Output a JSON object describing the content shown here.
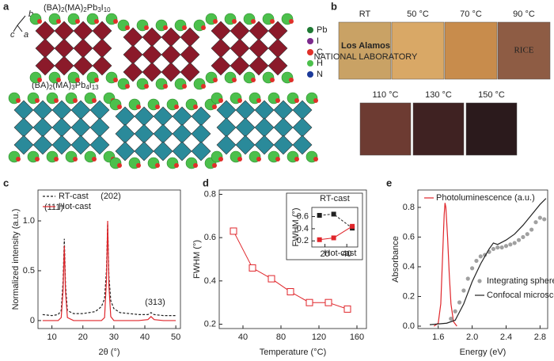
{
  "panel_a": {
    "label": "a",
    "axes": [
      "b",
      "c",
      "a"
    ],
    "formula_top": [
      "(BA)",
      "2",
      "(MA)",
      "2",
      "Pb",
      "3",
      "I",
      "10"
    ],
    "formula_bottom": [
      "(BA)",
      "2",
      "(MA)",
      "3",
      "Pb",
      "4",
      "I",
      "13"
    ],
    "legend": [
      {
        "name": "Pb",
        "color": "#1f7a34"
      },
      {
        "name": "I",
        "color": "#7b2a8c"
      },
      {
        "name": "C",
        "color": "#e0302a"
      },
      {
        "name": "H",
        "color": "#4cc04c"
      },
      {
        "name": "N",
        "color": "#1c3a9a"
      }
    ]
  },
  "panel_b": {
    "label": "b",
    "temperatures_top": [
      "RT",
      "50 °C",
      "70 °C",
      "90 °C"
    ],
    "temperatures_bottom": [
      "110 °C",
      "130 °C",
      "150 °C"
    ],
    "logos": [
      "Los Alamos",
      "NATIONAL LABORATORY",
      "RICE"
    ]
  },
  "chart_data": [
    {
      "label": "c",
      "type": "line",
      "xlabel": "2θ (°)",
      "ylabel": "Normalized intensity (a.u.)",
      "xlim": [
        5.5,
        51.5
      ],
      "xticks": [
        10,
        20,
        30,
        40,
        50
      ],
      "ylim": [
        -0.08,
        1.31
      ],
      "yticks": [
        0,
        0.5,
        {
          "value": 1,
          "label": "1.0"
        }
      ],
      "legend_loc": "upper left",
      "x": [
        7,
        10,
        12,
        13,
        13.6,
        14,
        14.4,
        15,
        17,
        20,
        24,
        26,
        27,
        27.6,
        28,
        28.4,
        29,
        30,
        32,
        35,
        38,
        41,
        42,
        43,
        46,
        50
      ],
      "series": [
        {
          "name": "RT-cast",
          "color": "#222222",
          "dash": true,
          "values": [
            0.06,
            0.05,
            0.06,
            0.1,
            0.4,
            0.82,
            0.35,
            0.1,
            0.07,
            0.07,
            0.09,
            0.14,
            0.22,
            0.5,
            0.97,
            0.45,
            0.2,
            0.12,
            0.08,
            0.07,
            0.06,
            0.06,
            0.08,
            0.06,
            0.05,
            0.05
          ]
        },
        {
          "name": "Hot-cast",
          "color": "#e0262b",
          "dash": false,
          "values": [
            0,
            0,
            0,
            0.03,
            0.3,
            0.75,
            0.28,
            0.03,
            0,
            0,
            0,
            0,
            0.03,
            0.4,
            1.0,
            0.35,
            0.04,
            0,
            0,
            0,
            0,
            0.01,
            0.04,
            0.01,
            0,
            0
          ]
        }
      ],
      "annotations": [
        "(111)",
        "(202)",
        "(313)"
      ]
    },
    {
      "label": "d",
      "type": "line",
      "marker": "square",
      "color": "#e0262b",
      "xlabel": "Temperature (°C)",
      "ylabel": "FWHM (°)",
      "xlim": [
        15,
        170
      ],
      "xticks": [
        40,
        80,
        120,
        160
      ],
      "ylim": [
        0.18,
        0.82
      ],
      "yticks": [
        0.2,
        0.4,
        0.6,
        0.8
      ],
      "x": [
        30,
        50,
        70,
        90,
        110,
        130,
        150
      ],
      "values": [
        0.63,
        0.46,
        0.41,
        0.35,
        0.3,
        0.3,
        0.27
      ],
      "inset": {
        "ylabel": "FWHM (°)",
        "xlim": [
          8,
          50
        ],
        "xticks": [
          20,
          40
        ],
        "ylim": [
          0.1,
          0.75
        ],
        "yticks": [
          0.2,
          0.4,
          0.6
        ],
        "x": [
          15,
          28,
          45
        ],
        "series": [
          {
            "name": "RT-cast",
            "color": "#222222",
            "dash": true,
            "values": [
              0.62,
              0.64,
              0.41
            ]
          },
          {
            "name": "Hot-cast",
            "color": "#e0262b",
            "dash": false,
            "values": [
              0.22,
              0.25,
              0.44
            ]
          }
        ]
      }
    },
    {
      "label": "e",
      "type": "line",
      "xlabel": "Energy (eV)",
      "ylabel": "Absorbance",
      "xlim": [
        1.36,
        2.89
      ],
      "xticks": [
        1.6,
        {
          "value": 2,
          "label": "2.0"
        },
        2.4,
        2.8
      ],
      "ylim": [
        -0.016,
        0.917
      ],
      "yticks": [
        {
          "value": 0,
          "label": "0.0"
        },
        0.2,
        0.4,
        0.6,
        0.8
      ],
      "series": [
        {
          "name": "Photoluminescence (a.u.)",
          "color": "#e0262b",
          "mode": "line",
          "x": [
            1.55,
            1.6,
            1.63,
            1.65,
            1.67,
            1.68,
            1.69,
            1.71,
            1.73,
            1.75,
            1.78,
            1.82
          ],
          "values": [
            0,
            0.02,
            0.15,
            0.45,
            0.75,
            0.83,
            0.8,
            0.6,
            0.35,
            0.15,
            0.03,
            0
          ]
        },
        {
          "name": "Integrating sphere",
          "color": "#a0a0a0",
          "mode": "markers",
          "x": [
            1.75,
            1.8,
            1.85,
            1.9,
            1.95,
            2.0,
            2.05,
            2.1,
            2.15,
            2.2,
            2.25,
            2.3,
            2.35,
            2.4,
            2.45,
            2.5,
            2.55,
            2.6,
            2.65,
            2.7,
            2.75,
            2.8,
            2.85
          ],
          "values": [
            0.05,
            0.1,
            0.16,
            0.24,
            0.32,
            0.39,
            0.44,
            0.47,
            0.48,
            0.5,
            0.52,
            0.53,
            0.53,
            0.54,
            0.55,
            0.56,
            0.58,
            0.6,
            0.62,
            0.65,
            0.7,
            0.73,
            0.72
          ]
        },
        {
          "name": "Confocal microscopy",
          "color": "#222222",
          "mode": "line",
          "x": [
            1.5,
            1.7,
            1.8,
            1.9,
            2.0,
            2.1,
            2.2,
            2.25,
            2.3,
            2.4,
            2.5,
            2.6,
            2.7,
            2.8,
            2.87
          ],
          "values": [
            0.01,
            0.02,
            0.04,
            0.15,
            0.3,
            0.42,
            0.52,
            0.56,
            0.55,
            0.58,
            0.62,
            0.68,
            0.75,
            0.82,
            0.86
          ]
        }
      ]
    }
  ]
}
